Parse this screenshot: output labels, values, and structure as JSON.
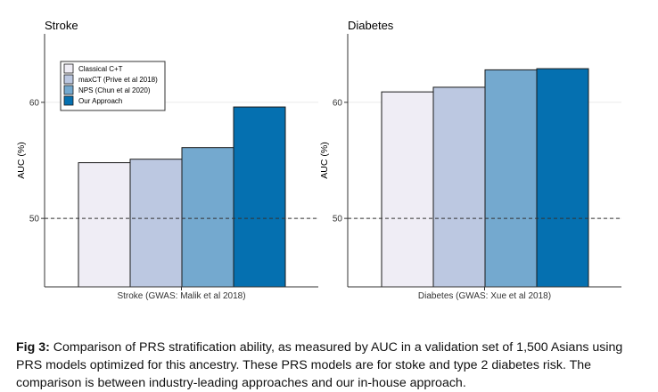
{
  "chart_data": [
    {
      "type": "bar",
      "title": "Stroke",
      "xlabel": "Stroke (GWAS: Malik et al 2018)",
      "ylabel": "AUC (%)",
      "yticks": [
        50,
        60
      ],
      "ylim": [
        44.1,
        65.9
      ],
      "reference_line": 50,
      "categories": [
        "Classical C+T",
        "maxCT (Prive et al 2018)",
        "NPS (Chun et al 2020)",
        "Our Approach"
      ],
      "values": [
        54.8,
        55.1,
        56.1,
        59.6
      ],
      "legend": [
        "Classical C+T",
        "maxCT (Prive et al 2018)",
        "NPS (Chun et al 2020)",
        "Our Approach"
      ],
      "legend_position": "top-left",
      "grid": true
    },
    {
      "type": "bar",
      "title": "Diabetes",
      "xlabel": "Diabetes (GWAS: Xue et al 2018)",
      "ylabel": "AUC (%)",
      "yticks": [
        50,
        60
      ],
      "ylim": [
        44.1,
        65.9
      ],
      "reference_line": 50,
      "categories": [
        "Classical C+T",
        "maxCT (Prive et al 2018)",
        "NPS (Chun et al 2020)",
        "Our Approach"
      ],
      "values": [
        60.9,
        61.3,
        62.8,
        62.9
      ],
      "grid": true
    }
  ],
  "colors": [
    "#efedf5",
    "#bcc8e1",
    "#74a9cf",
    "#0570b0"
  ],
  "caption": {
    "label": "Fig 3:",
    "text": " Comparison of PRS stratification ability, as measured by AUC in a validation set of 1,500 Asians using PRS models optimized for this ancestry. These PRS models are for stoke and type 2 diabetes risk. The comparison is between industry-leading approaches and our in-house approach."
  }
}
